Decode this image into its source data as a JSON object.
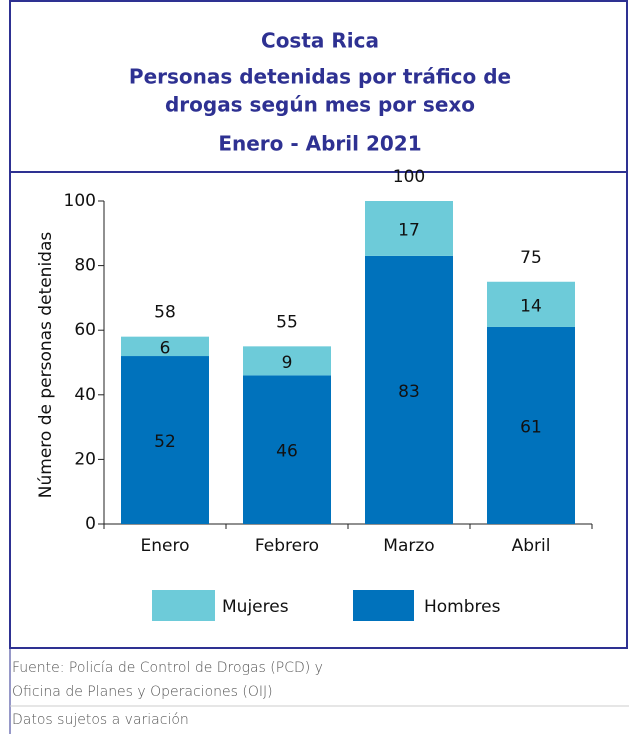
{
  "chart_data": {
    "type": "stacked_bar",
    "title": "Costa Rica",
    "subtitle": [
      "Personas detenidas  por tráfico de",
      "drogas según mes por sexo",
      "Enero - Abril  2021"
    ],
    "y_label": "Número de personas detenidas",
    "categories": [
      "Enero",
      "Febrero",
      "Marzo",
      "Abril"
    ],
    "series": [
      {
        "name": "Hombres",
        "color": "#0072bc",
        "values": [
          52,
          46,
          83,
          61
        ]
      },
      {
        "name": "Mujeres",
        "color": "#6dcbd9",
        "values": [
          6,
          9,
          17,
          14
        ]
      }
    ],
    "totals": [
      58,
      55,
      100,
      75
    ],
    "ylim": [
      0,
      100
    ],
    "yticks": [
      0,
      20,
      40,
      60,
      80,
      100
    ],
    "source": [
      "Fuente: Policía de Control de Drogas (PCD) y",
      "Oficina de Planes y Operaciones (OIJ)",
      "Datos sujetos a variación"
    ]
  }
}
